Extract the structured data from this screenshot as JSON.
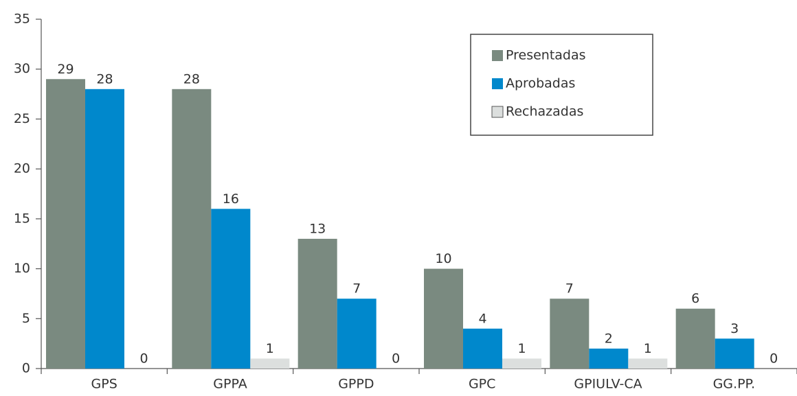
{
  "chart_data": {
    "type": "bar",
    "categories": [
      "GPS",
      "GPPA",
      "GPPD",
      "GPC",
      "GPIULV-CA",
      "GG.PP."
    ],
    "series": [
      {
        "name": "Presentadas",
        "color": "#7a8a80",
        "values": [
          29,
          28,
          13,
          10,
          7,
          6
        ]
      },
      {
        "name": "Aprobadas",
        "color": "#0088cc",
        "values": [
          28,
          16,
          7,
          4,
          2,
          3
        ]
      },
      {
        "name": "Rechazadas",
        "color": "#dcdfde",
        "values": [
          0,
          1,
          0,
          1,
          1,
          0
        ]
      }
    ],
    "ylim": [
      0,
      35
    ],
    "yticks": [
      0,
      5,
      10,
      15,
      20,
      25,
      30,
      35
    ],
    "legend": "upper right",
    "grid": false
  }
}
